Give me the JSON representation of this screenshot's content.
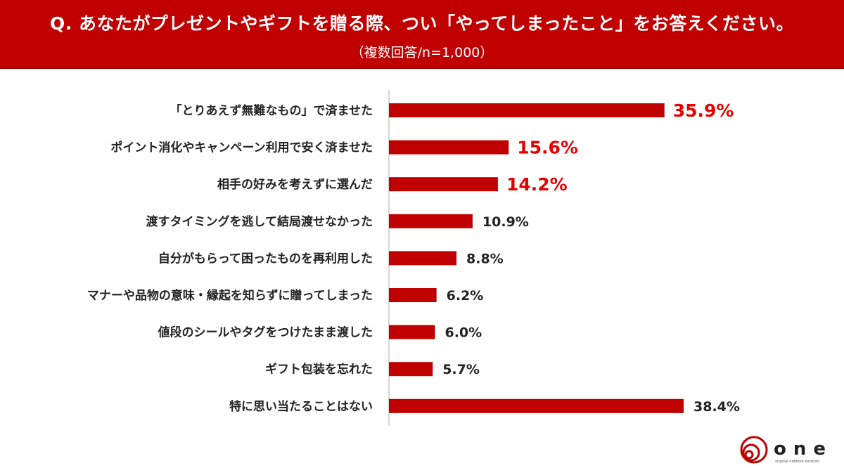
{
  "header": {
    "title": "Q. あなたがプレゼントやギフトを贈る際、つい「やってしまったこと」をお答えください。",
    "subtitle": "（複数回答/n=1,000）"
  },
  "chart_data": {
    "type": "bar",
    "orientation": "horizontal",
    "categories": [
      "「とりあえず無難なもの」で済ませた",
      "ポイント消化やキャンペーン利用で安く済ませた",
      "相手の好みを考えずに選んだ",
      "渡すタイミングを逃して結局渡せなかった",
      "自分がもらって困ったものを再利用した",
      "マナーや品物の意味・縁起を知らずに贈ってしまった",
      "値段のシールやタグをつけたまま渡した",
      "ギフト包装を忘れた",
      "特に思い当たることはない"
    ],
    "values": [
      35.9,
      15.6,
      14.2,
      10.9,
      8.8,
      6.2,
      6.0,
      5.7,
      38.4
    ],
    "data_labels": [
      "35.9%",
      "15.6%",
      "14.2%",
      "10.9%",
      "8.8%",
      "6.2%",
      "6.0%",
      "5.7%",
      "38.4%"
    ],
    "highlighted_top": 3,
    "unit": "%",
    "bar_color": "#c00000",
    "highlight_label_color": "#e60000",
    "label_color": "#222222",
    "grid": false,
    "legend": "none"
  },
  "logo": {
    "text": "one",
    "tagline": "original network emotion",
    "color": "#c00000"
  }
}
